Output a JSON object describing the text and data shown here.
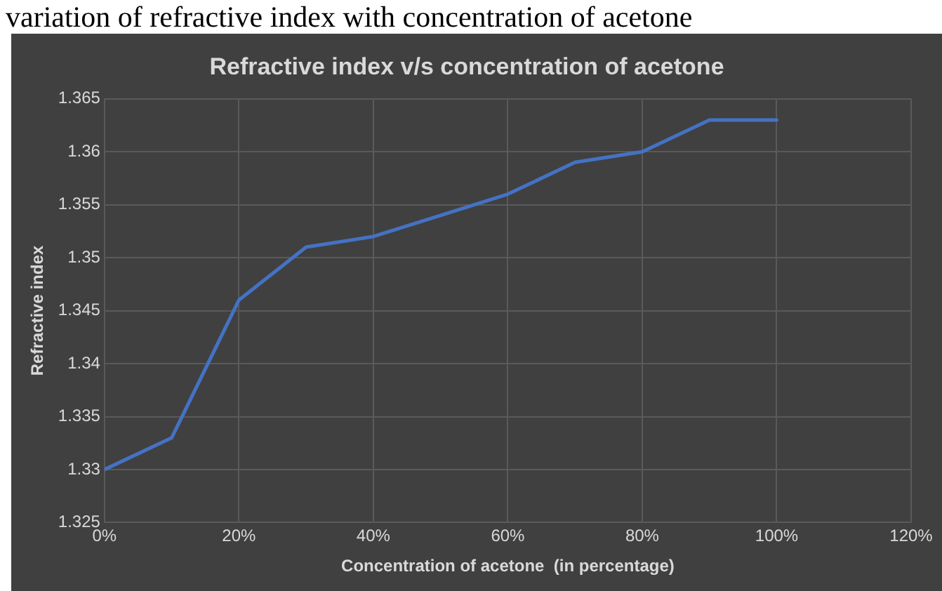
{
  "chart_data": {
    "type": "line",
    "title": "Refractive index v/s concentration of acetone",
    "annotations": [
      "variation of refractive index with concentration of acetone"
    ],
    "xlabel": "Concentration of acetone  (in percentage)",
    "ylabel": "Refractive index",
    "x": [
      0,
      10,
      20,
      30,
      40,
      50,
      60,
      70,
      80,
      90,
      100
    ],
    "series": [
      {
        "color": "#4472c4",
        "values": [
          1.33,
          1.333,
          1.346,
          1.351,
          1.352,
          1.354,
          1.356,
          1.359,
          1.36,
          1.363,
          1.363
        ]
      }
    ],
    "xlim": [
      0,
      120
    ],
    "xticks": [
      {
        "value": 0,
        "label": "0%"
      },
      {
        "value": 20,
        "label": "20%"
      },
      {
        "value": 40,
        "label": "40%"
      },
      {
        "value": 60,
        "label": "60%"
      },
      {
        "value": 80,
        "label": "80%"
      },
      {
        "value": 100,
        "label": "100%"
      },
      {
        "value": 120,
        "label": "120%"
      }
    ],
    "ylim": [
      1.325,
      1.365
    ],
    "yticks": [
      1.325,
      1.33,
      1.335,
      1.34,
      1.345,
      1.35,
      1.355,
      1.36,
      1.365
    ],
    "grid": true,
    "legend": false,
    "marker": "none",
    "line_style": "solid"
  }
}
